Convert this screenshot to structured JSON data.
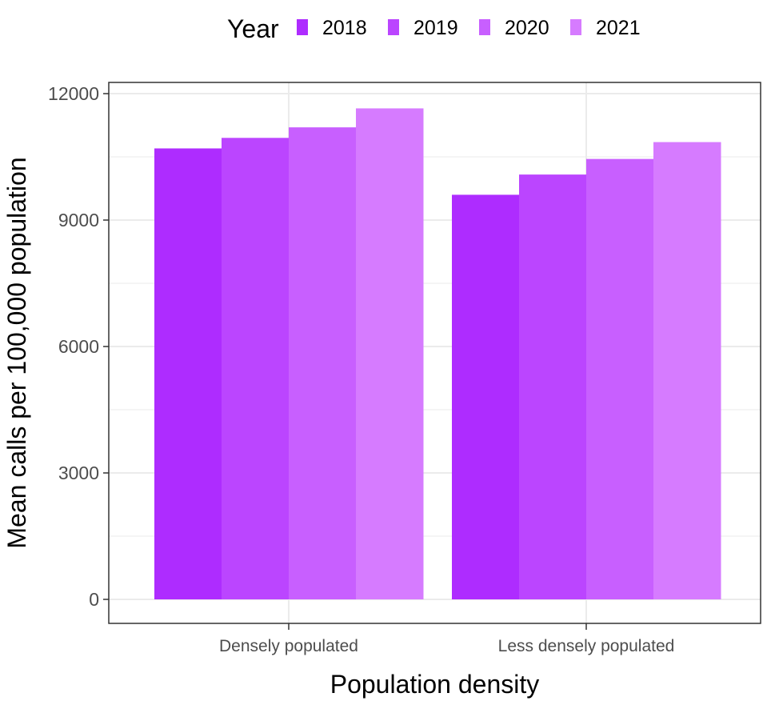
{
  "chart_data": {
    "type": "bar",
    "title": "",
    "xlabel": "Population density",
    "ylabel": "Mean calls per 100,000 population",
    "categories": [
      "Densely populated",
      "Less densely populated"
    ],
    "series": [
      {
        "name": "2018",
        "color": "#ae2cff",
        "values": [
          10700,
          9600
        ]
      },
      {
        "name": "2019",
        "color": "#bb45ff",
        "values": [
          10950,
          10080
        ]
      },
      {
        "name": "2020",
        "color": "#c85fff",
        "values": [
          11200,
          10450
        ]
      },
      {
        "name": "2021",
        "color": "#d67bff",
        "values": [
          11650,
          10850
        ]
      }
    ],
    "ylim": [
      0,
      12500
    ],
    "yticks": [
      0,
      3000,
      6000,
      9000,
      12000
    ],
    "ytick_labels": [
      "0",
      "3000",
      "6000",
      "9000",
      "12000"
    ],
    "grid": true,
    "legend": {
      "title": "Year",
      "position": "top"
    }
  }
}
